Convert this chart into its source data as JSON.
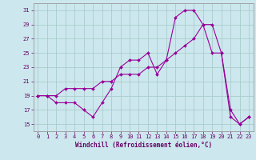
{
  "xlabel": "Windchill (Refroidissement éolien,°C)",
  "bg_color": "#cce8ee",
  "grid_color": "#aacccc",
  "line_color": "#990099",
  "line1_y": [
    19,
    19,
    18,
    18,
    18,
    17,
    16,
    18,
    20,
    23,
    24,
    24,
    25,
    22,
    24,
    30,
    31,
    31,
    29,
    25,
    25,
    16,
    15,
    16
  ],
  "line2_y": [
    19,
    19,
    19,
    20,
    20,
    20,
    20,
    21,
    21,
    22,
    22,
    22,
    23,
    23,
    24,
    25,
    26,
    27,
    29,
    29,
    25,
    17,
    15,
    16
  ],
  "xlim": [
    -0.5,
    23.5
  ],
  "ylim": [
    14.0,
    32.0
  ],
  "xticks": [
    0,
    1,
    2,
    3,
    4,
    5,
    6,
    7,
    8,
    9,
    10,
    11,
    12,
    13,
    14,
    15,
    16,
    17,
    18,
    19,
    20,
    21,
    22,
    23
  ],
  "yticks": [
    15,
    17,
    19,
    21,
    23,
    25,
    27,
    29,
    31
  ],
  "tick_fontsize": 5.0,
  "xlabel_fontsize": 5.5
}
